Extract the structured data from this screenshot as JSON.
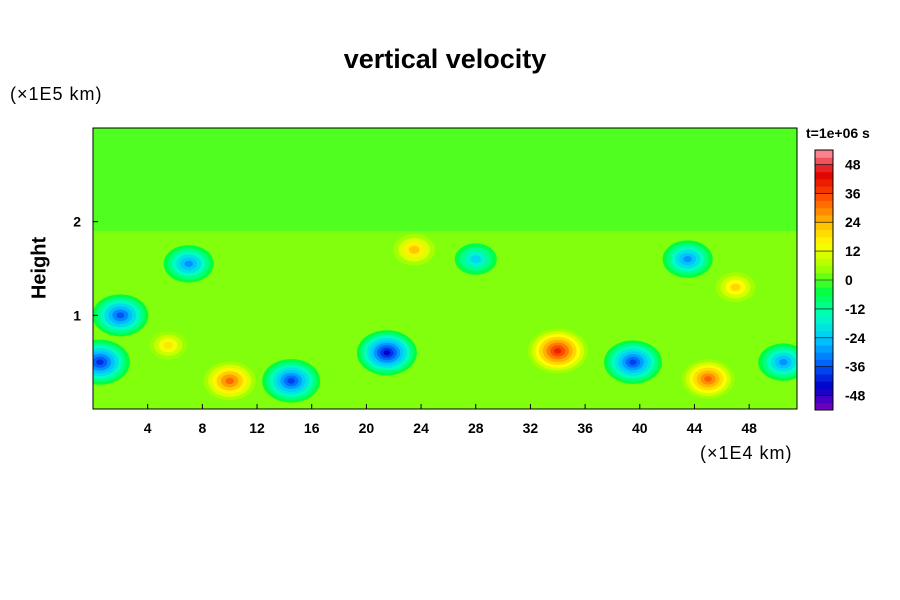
{
  "chart_data": {
    "type": "heatmap",
    "title": "vertical velocity",
    "ylabel": "Height",
    "xlabel": "",
    "x_unit": "(×1E4 km)",
    "y_unit": "(×1E5 km)",
    "time_label": "t=1e+06 s",
    "xlim": [
      0,
      51.5
    ],
    "ylim": [
      0,
      3
    ],
    "x_ticks": [
      "4",
      "8",
      "12",
      "16",
      "20",
      "24",
      "28",
      "32",
      "36",
      "40",
      "44",
      "48"
    ],
    "y_ticks": [
      "1",
      "2"
    ],
    "colorbar": {
      "min": -54,
      "max": 54,
      "ticks": [
        "48",
        "36",
        "24",
        "12",
        "0",
        "-12",
        "-24",
        "-36",
        "-48"
      ],
      "colormap": [
        "#8000c0",
        "#0000c8",
        "#0064ff",
        "#00c8ff",
        "#00ffc0",
        "#00ff40",
        "#a0ff00",
        "#ffff00",
        "#ffb400",
        "#ff5000",
        "#e00000",
        "#ff9aa8"
      ]
    },
    "features": [
      {
        "x": 34,
        "y": 0.62,
        "peak": 40
      },
      {
        "x": 45,
        "y": 0.32,
        "peak": 33
      },
      {
        "x": 10,
        "y": 0.3,
        "peak": 32
      },
      {
        "x": 23.5,
        "y": 1.7,
        "peak": 22
      },
      {
        "x": 47,
        "y": 1.3,
        "peak": 20
      },
      {
        "x": 5.5,
        "y": 0.68,
        "peak": 18
      },
      {
        "x": 14.5,
        "y": 0.3,
        "peak": -38
      },
      {
        "x": 21.5,
        "y": 0.6,
        "peak": -44
      },
      {
        "x": 39.5,
        "y": 0.5,
        "peak": -38
      },
      {
        "x": 2,
        "y": 1,
        "peak": -36
      },
      {
        "x": 0.5,
        "y": 0.5,
        "peak": -40
      },
      {
        "x": 7,
        "y": 1.55,
        "peak": -30
      },
      {
        "x": 43.5,
        "y": 1.6,
        "peak": -30
      },
      {
        "x": 28,
        "y": 1.6,
        "peak": -22
      },
      {
        "x": 50.5,
        "y": 0.5,
        "peak": -30
      }
    ]
  }
}
